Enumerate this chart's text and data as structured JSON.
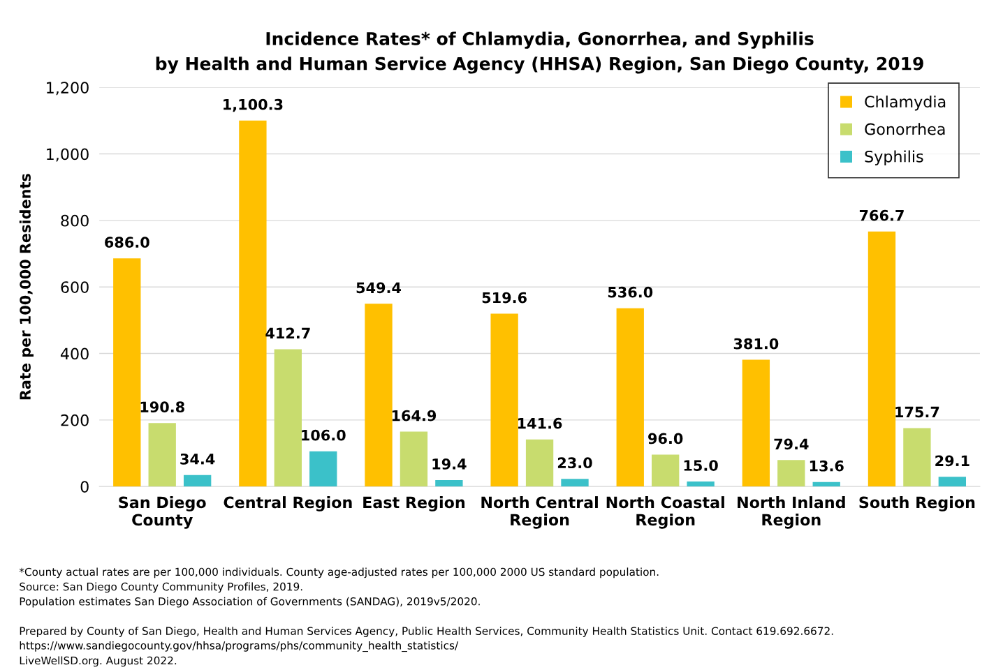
{
  "chart_data": {
    "type": "bar",
    "title": "Incidence Rates* of Chlamydia, Gonorrhea, and Syphilis\nby Health and Human Service Agency (HHSA) Region, San Diego County, 2019",
    "ylabel": "Rate per 100,000 Residents",
    "categories": [
      "San Diego\nCounty",
      "Central Region",
      "East Region",
      "North Central\nRegion",
      "North Coastal\nRegion",
      "North Inland\nRegion",
      "South Region"
    ],
    "series": [
      {
        "name": "Chlamydia",
        "color": "#ffc000",
        "values": [
          686.0,
          1100.3,
          549.4,
          519.6,
          536.0,
          381.0,
          766.7
        ],
        "value_labels": [
          "686.0",
          "1,100.3",
          "549.4",
          "519.6",
          "536.0",
          "381.0",
          "766.7"
        ]
      },
      {
        "name": "Gonorrhea",
        "color": "#c8dc6e",
        "values": [
          190.8,
          412.7,
          164.9,
          141.6,
          96.0,
          79.4,
          175.7
        ],
        "value_labels": [
          "190.8",
          "412.7",
          "164.9",
          "141.6",
          "96.0",
          "79.4",
          "175.7"
        ]
      },
      {
        "name": "Syphilis",
        "color": "#3bc1c9",
        "values": [
          34.4,
          106.0,
          19.4,
          23.0,
          15.0,
          13.6,
          29.1
        ],
        "value_labels": [
          "34.4",
          "106.0",
          "19.4",
          "23.0",
          "15.0",
          "13.6",
          "29.1"
        ]
      }
    ],
    "ylim": [
      0,
      1200
    ],
    "yticks": [
      0,
      200,
      400,
      600,
      800,
      {
        "value": 1000,
        "label": "1,000"
      },
      {
        "value": 1200,
        "label": "1,200"
      }
    ],
    "grid": "y",
    "legend": "top right",
    "annotations": [
      "*County actual rates are per 100,000 individuals. County age-adjusted rates per 100,000 2000 US standard population.",
      "Source: San Diego County Community Profiles, 2019.",
      "Population estimates San Diego Association of Governments (SANDAG), 2019v5/2020.",
      "Prepared by County of San Diego, Health and Human Services Agency, Public Health Services, Community Health Statistics Unit. Contact 619.692.6672.",
      "https://www.sandiegocounty.gov/hhsa/programs/phs/community_health_statistics/",
      "LiveWellSD.org. August 2022."
    ]
  }
}
